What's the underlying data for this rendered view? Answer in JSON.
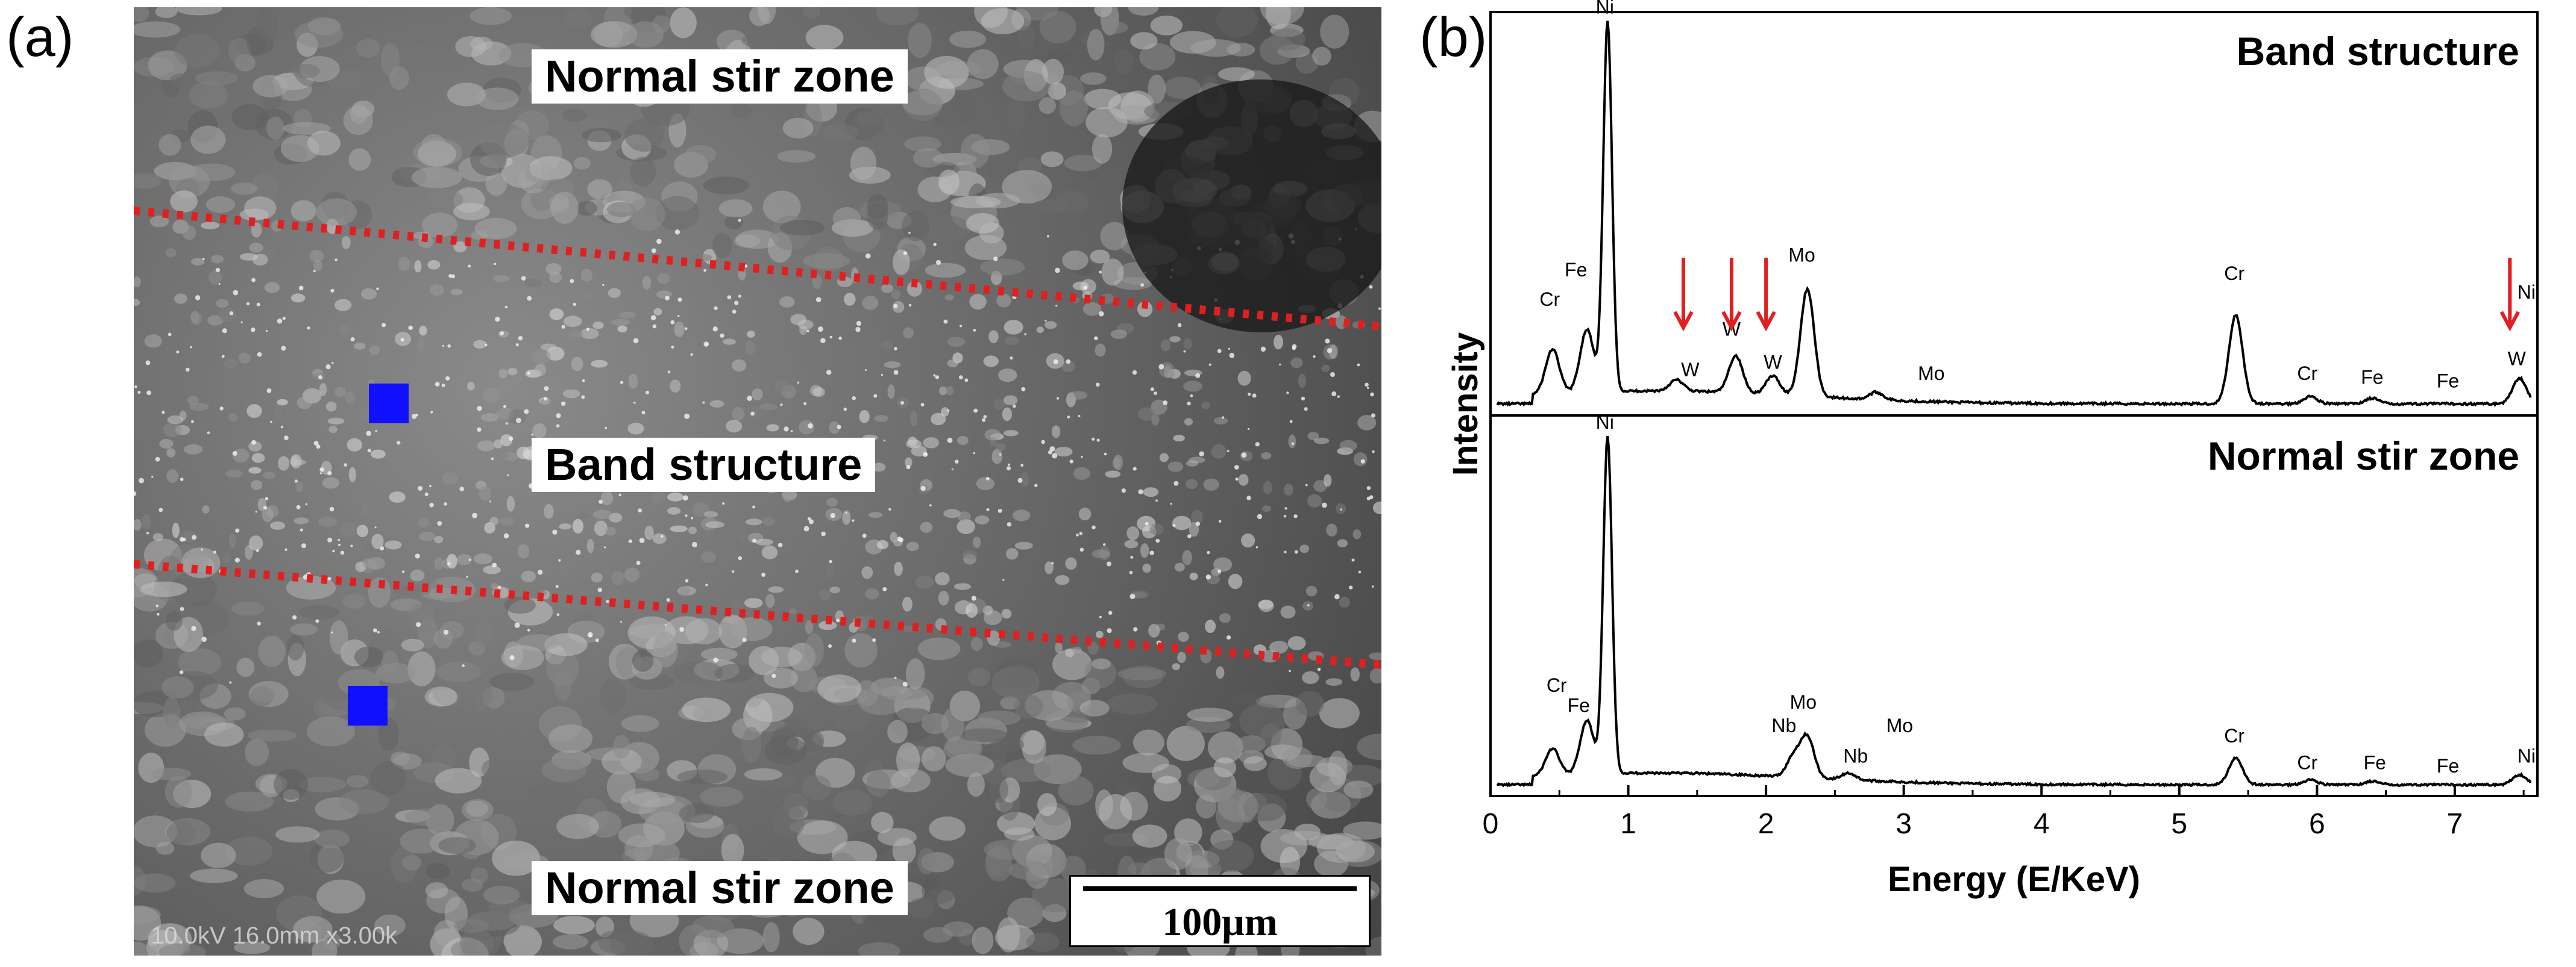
{
  "panel_a": {
    "label": "(a)",
    "zones": {
      "top": "Normal stir zone",
      "middle": "Band structure",
      "bottom": "Normal stir zone"
    },
    "scale_bar": "100μm",
    "sem_info": "10.0kV 16.0mm x3.00k",
    "colors": {
      "boundary_dots": "#e02020",
      "markers": "#1010ff"
    }
  },
  "panel_b": {
    "label": "(b)"
  },
  "chart_data": {
    "type": "line",
    "xlabel": "Energy (E/KeV)",
    "ylabel": "Intensity",
    "xlim": [
      0,
      7.6
    ],
    "x_ticks": [
      "0",
      "1",
      "2",
      "3",
      "4",
      "5",
      "6",
      "7"
    ],
    "series": [
      {
        "name": "Band structure",
        "color": "#000000",
        "peaks": [
          {
            "x": 0.45,
            "h": 0.12
          },
          {
            "x": 0.7,
            "h": 0.17
          },
          {
            "x": 0.85,
            "h": 1.0
          },
          {
            "x": 1.35,
            "h": 0.03
          },
          {
            "x": 1.78,
            "h": 0.1
          },
          {
            "x": 2.05,
            "h": 0.05
          },
          {
            "x": 2.3,
            "h": 0.29
          },
          {
            "x": 2.8,
            "h": 0.02
          },
          {
            "x": 5.41,
            "h": 0.24
          },
          {
            "x": 5.95,
            "h": 0.02
          },
          {
            "x": 6.4,
            "h": 0.015
          },
          {
            "x": 7.47,
            "h": 0.07
          }
        ],
        "peak_labels": [
          {
            "x": 0.43,
            "text": "Cr",
            "h": 0.26
          },
          {
            "x": 0.62,
            "text": "Fe",
            "h": 0.34
          },
          {
            "x": 0.83,
            "text": "Ni",
            "h": 1.05
          },
          {
            "x": 1.45,
            "text": "W",
            "h": 0.07
          },
          {
            "x": 1.75,
            "text": "W",
            "h": 0.18
          },
          {
            "x": 2.05,
            "text": "W",
            "h": 0.09
          },
          {
            "x": 2.26,
            "text": "Mo",
            "h": 0.38
          },
          {
            "x": 3.2,
            "text": "Mo",
            "h": 0.06
          },
          {
            "x": 5.4,
            "text": "Cr",
            "h": 0.33
          },
          {
            "x": 5.93,
            "text": "Cr",
            "h": 0.06
          },
          {
            "x": 6.4,
            "text": "Fe",
            "h": 0.05
          },
          {
            "x": 6.95,
            "text": "Fe",
            "h": 0.04
          },
          {
            "x": 7.45,
            "text": "W",
            "h": 0.1
          },
          {
            "x": 7.52,
            "text": "Ni",
            "h": 0.28
          }
        ],
        "arrows_at": [
          1.4,
          1.75,
          2.0,
          7.4
        ]
      },
      {
        "name": "Normal stir zone",
        "color": "#000000",
        "peaks": [
          {
            "x": 0.45,
            "h": 0.08
          },
          {
            "x": 0.7,
            "h": 0.16
          },
          {
            "x": 0.85,
            "h": 1.0
          },
          {
            "x": 2.2,
            "h": 0.06
          },
          {
            "x": 2.3,
            "h": 0.12
          },
          {
            "x": 2.6,
            "h": 0.02
          },
          {
            "x": 5.41,
            "h": 0.08
          },
          {
            "x": 5.95,
            "h": 0.015
          },
          {
            "x": 6.4,
            "h": 0.01
          },
          {
            "x": 7.47,
            "h": 0.03
          }
        ],
        "peak_labels": [
          {
            "x": 0.48,
            "text": "Cr",
            "h": 0.27
          },
          {
            "x": 0.64,
            "text": "Fe",
            "h": 0.21
          },
          {
            "x": 0.83,
            "text": "Ni",
            "h": 1.05
          },
          {
            "x": 2.13,
            "text": "Nb",
            "h": 0.15
          },
          {
            "x": 2.27,
            "text": "Mo",
            "h": 0.22
          },
          {
            "x": 2.65,
            "text": "Nb",
            "h": 0.06
          },
          {
            "x": 2.97,
            "text": "Mo",
            "h": 0.15
          },
          {
            "x": 5.4,
            "text": "Cr",
            "h": 0.12
          },
          {
            "x": 5.93,
            "text": "Cr",
            "h": 0.04
          },
          {
            "x": 6.42,
            "text": "Fe",
            "h": 0.04
          },
          {
            "x": 6.95,
            "text": "Fe",
            "h": 0.03
          },
          {
            "x": 7.52,
            "text": "Ni",
            "h": 0.06
          }
        ]
      }
    ],
    "arrow_color": "#e02020"
  }
}
